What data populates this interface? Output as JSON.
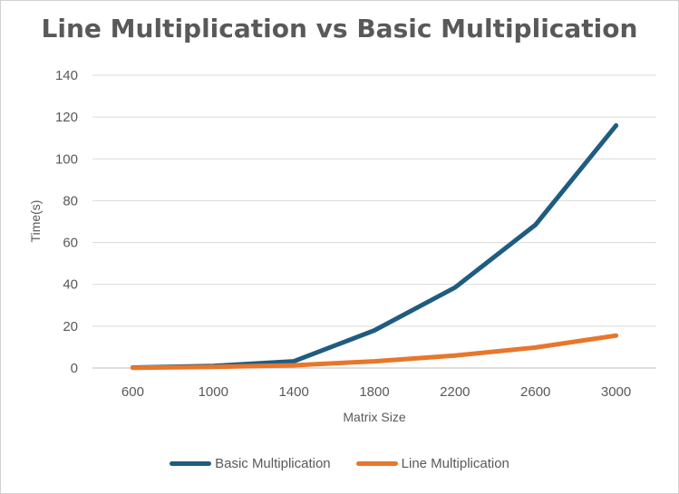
{
  "chart_data": {
    "type": "line",
    "title": "Line Multiplication vs Basic Multiplication",
    "xlabel": "Matrix Size",
    "ylabel": "Time(s)",
    "categories": [
      "600",
      "1000",
      "1400",
      "1800",
      "2200",
      "2600",
      "3000"
    ],
    "ylim": [
      0,
      140
    ],
    "yticks": [
      "0",
      "20",
      "40",
      "60",
      "80",
      "100",
      "120",
      "140"
    ],
    "grid": true,
    "legend_position": "bottom",
    "series": [
      {
        "name": "Basic Multiplication",
        "color": "#1f5c80",
        "values": [
          0.2,
          1.0,
          3.2,
          18,
          38.5,
          68.5,
          116
        ]
      },
      {
        "name": "Line Multiplication",
        "color": "#e8762b",
        "values": [
          0.1,
          0.5,
          1.3,
          3.2,
          6.0,
          9.8,
          15.5
        ]
      }
    ]
  }
}
